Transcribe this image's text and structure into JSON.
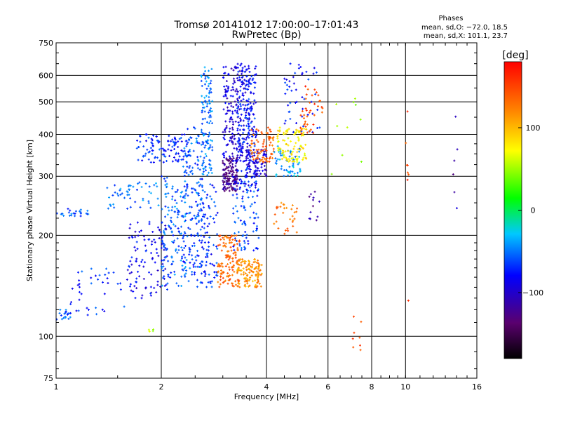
{
  "chart_data": {
    "type": "scatter",
    "title": "Tromsø 20141012 17:00:00–17:01:43",
    "subtitle": "RwPretec (Bp)",
    "phase_info": {
      "heading": "Phases",
      "line1": "mean, sd,O: −72.0, 18.5",
      "line2": "mean, sd,X: 101.1, 23.7"
    },
    "xlabel": "Frequency [MHz]",
    "ylabel": "Stationary phase Virtual Height [km]",
    "xscale": "log",
    "yscale": "log",
    "xlim": [
      1,
      16
    ],
    "ylim": [
      75,
      750
    ],
    "xticks": [
      1,
      2,
      4,
      6,
      8,
      10,
      16
    ],
    "xtick_labels": [
      "1",
      "2",
      "4",
      "6",
      "8",
      "10",
      "16"
    ],
    "x_gridlines": [
      2,
      4,
      6,
      8,
      10
    ],
    "yticks": [
      75,
      100,
      200,
      300,
      400,
      500,
      600,
      750
    ],
    "ytick_labels": [
      "75",
      "100",
      "200",
      "300",
      "400",
      "500",
      "600",
      "750"
    ],
    "y_gridlines": [
      100,
      200,
      300,
      400,
      500,
      600
    ],
    "grid": true,
    "colorbar": {
      "label": "[deg]",
      "min": -180,
      "max": 180,
      "ticks": [
        100,
        0,
        -100
      ],
      "tick_labels": [
        "100",
        "0",
        "−100"
      ],
      "colormap": [
        "#000000",
        "#5a006e",
        "#0000ff",
        "#00c8ff",
        "#00ff00",
        "#ffff00",
        "#ff8000",
        "#ff0000"
      ]
    },
    "clusters": [
      {
        "f_min": 1.0,
        "f_max": 1.1,
        "h_min": 112,
        "h_max": 120,
        "phase": -60,
        "n": 20
      },
      {
        "f_min": 1.1,
        "f_max": 1.6,
        "h_min": 115,
        "h_max": 160,
        "phase": -70,
        "n": 40
      },
      {
        "f_min": 1.0,
        "f_max": 1.25,
        "h_min": 228,
        "h_max": 240,
        "phase": -55,
        "n": 25
      },
      {
        "f_min": 1.4,
        "f_max": 2.0,
        "h_min": 240,
        "h_max": 290,
        "phase": -50,
        "n": 50
      },
      {
        "f_min": 1.6,
        "f_max": 2.1,
        "h_min": 130,
        "h_max": 220,
        "phase": -85,
        "n": 110
      },
      {
        "f_min": 1.7,
        "f_max": 2.4,
        "h_min": 330,
        "h_max": 400,
        "phase": -70,
        "n": 110
      },
      {
        "f_min": 2.0,
        "f_max": 2.35,
        "h_min": 140,
        "h_max": 300,
        "phase": -55,
        "n": 130
      },
      {
        "f_min": 2.3,
        "f_max": 2.65,
        "h_min": 140,
        "h_max": 420,
        "phase": -60,
        "n": 190
      },
      {
        "f_min": 2.6,
        "f_max": 2.8,
        "h_min": 300,
        "h_max": 640,
        "phase": -50,
        "n": 120
      },
      {
        "f_min": 2.6,
        "f_max": 2.9,
        "h_min": 140,
        "h_max": 300,
        "phase": -70,
        "n": 80
      },
      {
        "f_min": 3.0,
        "f_max": 3.3,
        "h_min": 270,
        "h_max": 340,
        "phase": -125,
        "n": 140
      },
      {
        "f_min": 3.0,
        "f_max": 3.6,
        "h_min": 330,
        "h_max": 640,
        "phase": -95,
        "n": 200
      },
      {
        "f_min": 3.3,
        "f_max": 3.75,
        "h_min": 270,
        "h_max": 650,
        "phase": -75,
        "n": 200
      },
      {
        "f_min": 3.5,
        "f_max": 4.0,
        "h_min": 300,
        "h_max": 360,
        "phase": -95,
        "n": 80
      },
      {
        "f_min": 2.9,
        "f_max": 3.35,
        "h_min": 140,
        "h_max": 200,
        "phase": 135,
        "n": 130
      },
      {
        "f_min": 3.3,
        "f_max": 3.9,
        "h_min": 140,
        "h_max": 170,
        "phase": 115,
        "n": 120
      },
      {
        "f_min": 3.2,
        "f_max": 3.8,
        "h_min": 180,
        "h_max": 300,
        "phase": -65,
        "n": 90
      },
      {
        "f_min": 3.6,
        "f_max": 4.2,
        "h_min": 330,
        "h_max": 420,
        "phase": 135,
        "n": 80
      },
      {
        "f_min": 4.2,
        "f_max": 5.0,
        "h_min": 300,
        "h_max": 370,
        "phase": -40,
        "n": 60
      },
      {
        "f_min": 4.3,
        "f_max": 5.2,
        "h_min": 330,
        "h_max": 420,
        "phase": 80,
        "n": 100
      },
      {
        "f_min": 4.2,
        "f_max": 4.9,
        "h_min": 200,
        "h_max": 250,
        "phase": 130,
        "n": 30
      },
      {
        "f_min": 4.5,
        "f_max": 5.7,
        "h_min": 400,
        "h_max": 650,
        "phase": -75,
        "n": 50
      },
      {
        "f_min": 5.0,
        "f_max": 5.8,
        "h_min": 400,
        "h_max": 560,
        "phase": 150,
        "n": 40
      },
      {
        "f_min": 5.3,
        "f_max": 5.7,
        "h_min": 220,
        "h_max": 280,
        "phase": -120,
        "n": 12
      },
      {
        "f_min": 6.0,
        "f_max": 7.5,
        "h_min": 300,
        "h_max": 520,
        "phase": 40,
        "n": 10
      },
      {
        "f_min": 7.0,
        "f_max": 7.5,
        "h_min": 90,
        "h_max": 140,
        "phase": 140,
        "n": 8
      },
      {
        "f_min": 10.0,
        "f_max": 10.3,
        "h_min": 120,
        "h_max": 580,
        "phase": 150,
        "n": 8
      },
      {
        "f_min": 13.5,
        "f_max": 14.2,
        "h_min": 190,
        "h_max": 610,
        "phase": -110,
        "n": 6
      },
      {
        "f_min": 1.8,
        "f_max": 1.9,
        "h_min": 102,
        "h_max": 106,
        "phase": 60,
        "n": 4
      }
    ]
  }
}
